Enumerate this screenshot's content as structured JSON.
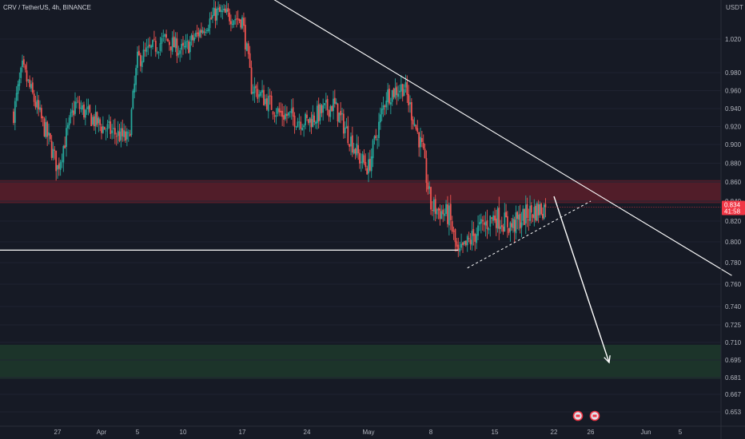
{
  "header": {
    "symbol_line": "CRV / TetherUS, 4h, BINANCE",
    "currency": "USDT"
  },
  "price_badge": {
    "price": "0.834",
    "countdown": "41:58",
    "color": "#f23645"
  },
  "colors": {
    "background": "#161a25",
    "up_candle": "#26a69a",
    "down_candle": "#ef5350",
    "resistance_zone": "#5c1f2a",
    "support_zone": "#1d3a2c",
    "trendline": "#ffffff"
  },
  "event_icons": [
    "earnings-icon",
    "earnings-icon"
  ],
  "chart_data": {
    "type": "candlestick",
    "timeframe": "4h",
    "ylim": [
      0.645,
      1.065
    ],
    "y_ticks": [
      "1.020",
      "0.980",
      "0.960",
      "0.940",
      "0.920",
      "0.900",
      "0.880",
      "0.860",
      "0.840",
      "0.820",
      "0.800",
      "0.780",
      "0.760",
      "0.740",
      "0.725",
      "0.710",
      "0.695",
      "0.681",
      "0.667",
      "0.653"
    ],
    "x_ticks": [
      "27",
      "Apr",
      "5",
      "10",
      "17",
      "24",
      "May",
      "8",
      "15",
      "22",
      "26",
      "Jun",
      "5"
    ],
    "last_price": 0.834,
    "resistance_zone": [
      0.838,
      0.862
    ],
    "support_zone": [
      0.68,
      0.708
    ],
    "horizontal_support": 0.792,
    "path_keypoints": [
      {
        "x": "Mar 22",
        "close": 0.935
      },
      {
        "x": "Mar 23",
        "close": 0.985
      },
      {
        "x": "Mar 26",
        "close": 0.905
      },
      {
        "x": "Mar 27",
        "close": 0.875
      },
      {
        "x": "Mar 29",
        "close": 0.945
      },
      {
        "x": "Apr 1",
        "close": 0.92
      },
      {
        "x": "Apr 4",
        "close": 0.905
      },
      {
        "x": "Apr 5",
        "close": 0.995
      },
      {
        "x": "Apr 8",
        "close": 1.02
      },
      {
        "x": "Apr 10",
        "close": 1.005
      },
      {
        "x": "Apr 12",
        "close": 1.03
      },
      {
        "x": "Apr 14",
        "close": 1.055
      },
      {
        "x": "Apr 17",
        "close": 1.045
      },
      {
        "x": "Apr 18",
        "close": 0.965
      },
      {
        "x": "Apr 21",
        "close": 0.935
      },
      {
        "x": "Apr 24",
        "close": 0.925
      },
      {
        "x": "Apr 27",
        "close": 0.945
      },
      {
        "x": "Apr 30",
        "close": 0.885
      },
      {
        "x": "May 1",
        "close": 0.875
      },
      {
        "x": "May 3",
        "close": 0.955
      },
      {
        "x": "May 5",
        "close": 0.965
      },
      {
        "x": "May 7",
        "close": 0.895
      },
      {
        "x": "May 8",
        "close": 0.835
      },
      {
        "x": "May 10",
        "close": 0.825
      },
      {
        "x": "May 11",
        "close": 0.785
      },
      {
        "x": "May 13",
        "close": 0.81
      },
      {
        "x": "May 15",
        "close": 0.825
      },
      {
        "x": "May 17",
        "close": 0.815
      },
      {
        "x": "May 19",
        "close": 0.828
      },
      {
        "x": "May 21",
        "close": 0.834
      }
    ],
    "descending_trendline": {
      "from": {
        "x": "Apr 20",
        "y": 1.075
      },
      "to": {
        "x": "Jun 11",
        "y": 0.768
      }
    },
    "rising_support_line": {
      "from": {
        "x": "May 12",
        "y": 0.775
      },
      "to": {
        "x": "May 26",
        "y": 0.84
      }
    },
    "projection_arrow": {
      "from": {
        "x": "May 22",
        "y": 0.845
      },
      "to": {
        "x": "May 28",
        "y": 0.693
      }
    }
  }
}
